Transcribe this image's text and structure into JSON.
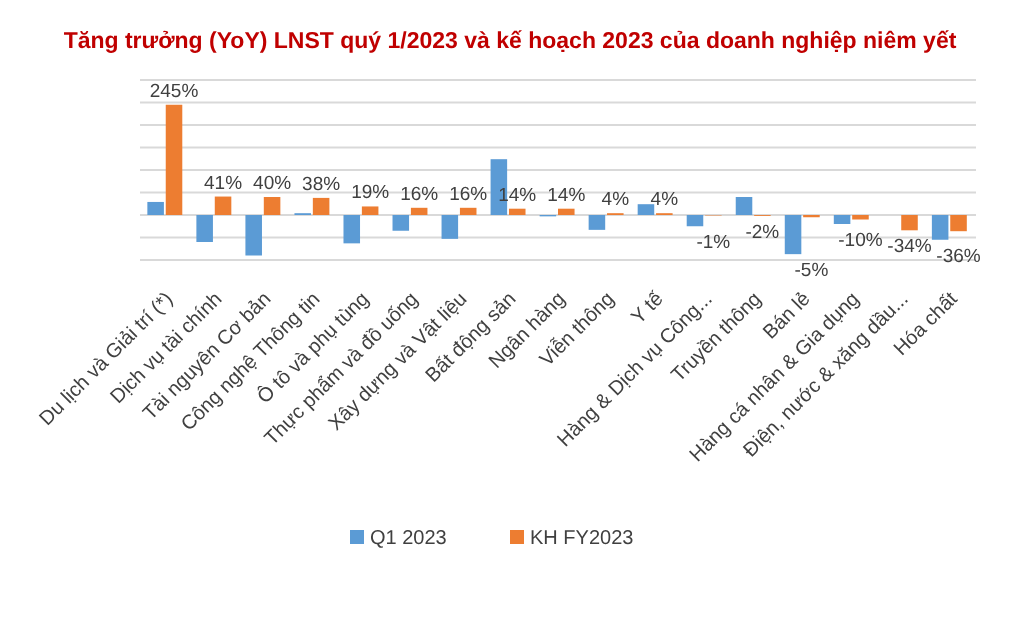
{
  "chart_data": {
    "type": "bar",
    "title": "Tăng trưởng (YoY) LNST quý 1/2023 và kế hoạch 2023 của doanh nghiệp niêm yết",
    "categories": [
      "Du lịch và Giải trí (*)",
      "Dịch vụ tài chính",
      "Tài nguyên Cơ bản",
      "Công nghệ Thông tin",
      "Ô tô và phụ tùng",
      "Thực phẩm và đồ uống",
      "Xây dựng và Vật liệu",
      "Bất động sản",
      "Ngân hàng",
      "Viễn thông",
      "Y tế",
      "Hàng & Dịch vụ Công...",
      "Truyền thông",
      "Bán lẻ",
      "Hàng cá nhân & Gia dụng",
      "Điện, nước & xăng dầu...",
      "Hóa chất"
    ],
    "series": [
      {
        "name": "Q1 2023",
        "color": "#5b9bd5",
        "values": [
          29,
          -60,
          -90,
          4,
          -63,
          -35,
          -53,
          124,
          -3,
          -33,
          24,
          -25,
          40,
          -87,
          -20,
          null,
          -55
        ]
      },
      {
        "name": "KH FY2023",
        "color": "#ed7d31",
        "values": [
          245,
          41,
          40,
          38,
          19,
          16,
          16,
          14,
          14,
          4,
          4,
          -1,
          -2,
          -5,
          -10,
          -34,
          -36
        ],
        "value_labels": [
          "245%",
          "41%",
          "40%",
          "38%",
          "19%",
          "16%",
          "16%",
          "14%",
          "14%",
          "4%",
          "4%",
          "-1%",
          "-2%",
          "-5%",
          "-10%",
          "-34%",
          "-36%"
        ]
      }
    ],
    "ylim": [
      -100,
      300
    ],
    "yticks": [
      {
        "value": -100,
        "label": null
      },
      {
        "value": -50,
        "label": null
      },
      {
        "value": 0,
        "label": null
      },
      {
        "value": 50,
        "label": null
      },
      {
        "value": 100,
        "label": null
      },
      {
        "value": 150,
        "label": null
      },
      {
        "value": 200,
        "label": null
      },
      {
        "value": 250,
        "label": null
      },
      {
        "value": 300,
        "label": null
      }
    ],
    "tick_labels": "x",
    "grid": "y",
    "legend": "bottom"
  }
}
